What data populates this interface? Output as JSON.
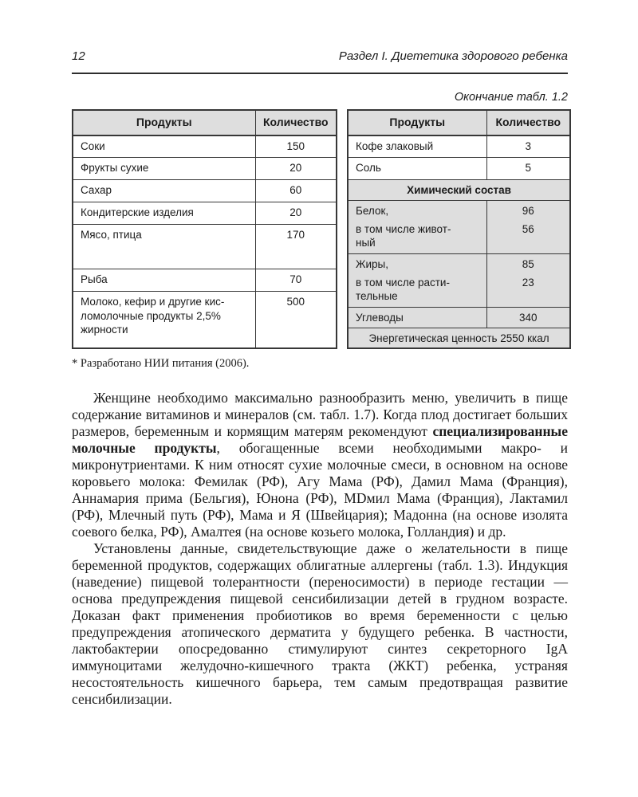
{
  "page": {
    "number": "12",
    "header_title": "Раздел I. Диететика здорового ребенка"
  },
  "colors": {
    "table_shading": "#dedede",
    "border": "#373737",
    "text": "#1b1b1b"
  },
  "table": {
    "caption": "Окончание табл. 1.2",
    "footnote": "* Разработано НИИ питания (2006).",
    "left": {
      "headers": [
        "Продукты",
        "Количество"
      ],
      "rows": [
        {
          "product": "Соки",
          "qty": "150"
        },
        {
          "product": "Фрукты сухие",
          "qty": "20"
        },
        {
          "product": "Сахар",
          "qty": "60"
        },
        {
          "product": "Кондитерские изделия",
          "qty": "20"
        },
        {
          "product": "Мясо, птица",
          "qty": "170"
        },
        {
          "product": "Рыба",
          "qty": "70"
        },
        {
          "product": "Молоко, кефир и другие кис-ломолочные продукты 2,5% жирности",
          "qty": "500"
        }
      ]
    },
    "right": {
      "headers": [
        "Продукты",
        "Количество"
      ],
      "rows_top": [
        {
          "product": "Кофе злаковый",
          "qty": "3"
        },
        {
          "product": "Соль",
          "qty": "5"
        }
      ],
      "section_header": "Химический состав",
      "chem": {
        "protein": {
          "label": "Белок,",
          "qty": "96"
        },
        "protein_animal": {
          "label": "в том числе живот-ный",
          "qty": "56"
        },
        "fats": {
          "label": "Жиры,",
          "qty": "85"
        },
        "fats_vegetable": {
          "label": "в том числе расти-тельные",
          "qty": "23"
        },
        "carbohydrates": {
          "label": "Углеводы",
          "qty": "340"
        },
        "energy": "Энергетическая ценность 2550 ккал"
      }
    }
  },
  "body": {
    "para1": {
      "before": "Женщине  необходимо максимально разнообразить меню, увеличить в пище содержание витаминов и минералов (см. табл. 1.7). Когда плод достигает больших размеров, беременным и кормящим матерям рекомендуют ",
      "bold": "специализированные молочные продукты",
      "after": ", обогащенные всеми необходимыми макро- и микронутриентами. К ним относят сухие молочные смеси, в основном на основе коровьего молока: Фемилак (РФ), Агу Мама (РФ), Дамил Мама (Франция), Аннамария прима (Бельгия), Юнона (РФ), МDмил Мама (Франция), Лактамил (РФ), Млечный путь (РФ), Мама и Я (Швейцария); Мадонна (на основе изолята соевого белка, РФ), Амалтея (на основе козьего молока, Голландия) и др."
    },
    "para2": "Установлены данные, свидетельствующие даже о желательности в пище беременной продуктов, содержащих облигатные аллергены (табл. 1.3). Индукция (наведение) пищевой толерантности (переносимости) в периоде гестации — основа предупреждения пищевой сенсибилизации детей в грудном возрасте. Доказан факт применения пробиотиков во время беременности с целью предупреждения атопического дерматита у будущего ребенка. В частности, лактобактерии опосредованно стимулируют синтез секреторного IgA иммуноцитами желудочно-кишечного тракта (ЖКТ) ребенка, устраняя несостоятельность кишечного барьера, тем самым предотвращая развитие сенсибилизации."
  }
}
